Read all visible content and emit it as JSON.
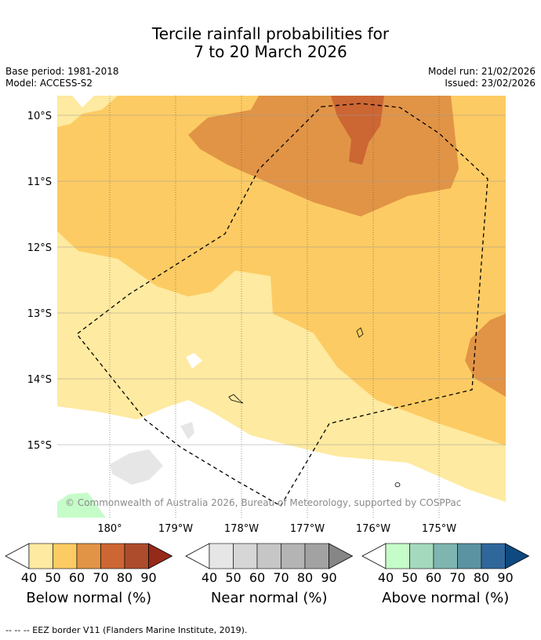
{
  "title": {
    "line1": "Tercile rainfall probabilities for",
    "line2": "7 to 20 March 2026"
  },
  "meta": {
    "base_period": "Base period: 1981-2018",
    "model": "Model: ACCESS-S2",
    "model_run": "Model run: 21/02/2026",
    "issued": "Issued: 23/02/2026"
  },
  "map": {
    "lat_labels": [
      "10°S",
      "11°S",
      "12°S",
      "13°S",
      "14°S",
      "15°S"
    ],
    "lon_labels": [
      "180°",
      "179°W",
      "178°W",
      "177°W",
      "176°W",
      "175°W"
    ],
    "copyright": "© Commonwealth of Australia 2026, Bureau of Meteorology, supported by COSPPac"
  },
  "legends": [
    {
      "name": "Below normal (%)",
      "ticks": [
        "40",
        "50",
        "60",
        "70",
        "80",
        "90"
      ],
      "colors": [
        "#ffffff",
        "#feeaa0",
        "#fdcb63",
        "#e19446",
        "#cc6633",
        "#ac4c2c",
        "#952a1a"
      ]
    },
    {
      "name": "Near normal (%)",
      "ticks": [
        "40",
        "50",
        "60",
        "70",
        "80",
        "90"
      ],
      "colors": [
        "#ffffff",
        "#e6e6e6",
        "#d6d6d6",
        "#c6c6c6",
        "#b4b4b4",
        "#a2a2a2",
        "#868686"
      ]
    },
    {
      "name": "Above normal (%)",
      "ticks": [
        "40",
        "50",
        "60",
        "70",
        "80",
        "90"
      ],
      "colors": [
        "#ffffff",
        "#c6fcc9",
        "#a5d9bd",
        "#7fb5b0",
        "#5b93a2",
        "#30679b",
        "#0e4a7f"
      ]
    }
  ],
  "footer": "--  --  -- EEZ border V11 (Flanders Marine Institute, 2019)."
}
